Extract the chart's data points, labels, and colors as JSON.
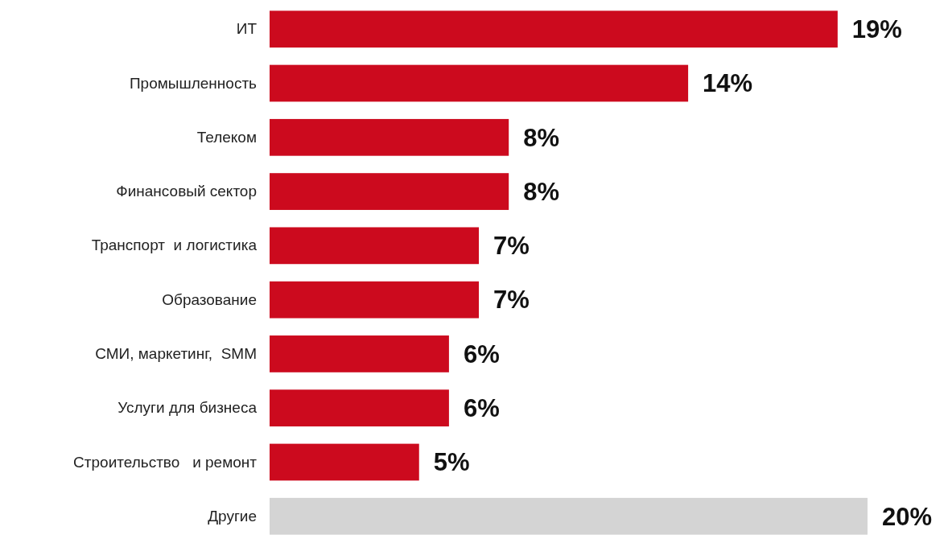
{
  "chart_data": {
    "type": "bar",
    "orientation": "horizontal",
    "categories": [
      "ИТ",
      "Промышленность",
      "Телеком",
      "Финансовый сектор",
      "Транспорт  и логистика",
      "Образование",
      "СМИ, маркетинг,  SMM",
      "Услуги для бизнеса",
      "Строительство   и ремонт",
      "Другие"
    ],
    "values": [
      19,
      14,
      8,
      8,
      7,
      7,
      6,
      6,
      5,
      20
    ],
    "colors": [
      "#cc0a1e",
      "#cc0a1e",
      "#cc0a1e",
      "#cc0a1e",
      "#cc0a1e",
      "#cc0a1e",
      "#cc0a1e",
      "#cc0a1e",
      "#cc0a1e",
      "#d4d4d4"
    ],
    "value_labels": [
      "19%",
      "14%",
      "8%",
      "8%",
      "7%",
      "7%",
      "6%",
      "6%",
      "5%",
      "20%"
    ],
    "tick_labels": "y"
  }
}
